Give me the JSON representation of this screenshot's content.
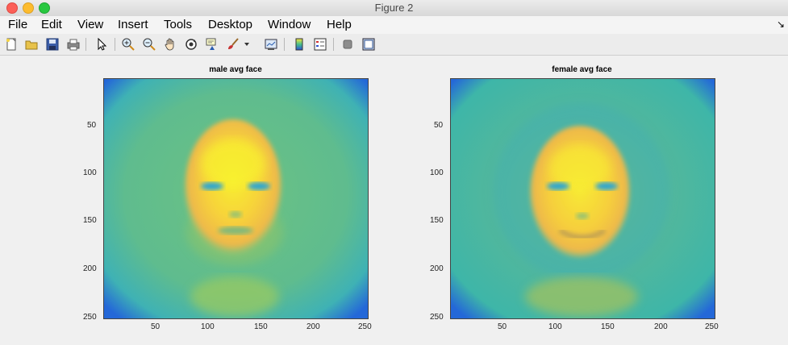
{
  "window": {
    "title": "Figure 2"
  },
  "menubar": {
    "items": [
      "File",
      "Edit",
      "View",
      "Insert",
      "Tools",
      "Desktop",
      "Window",
      "Help"
    ]
  },
  "toolbar": {
    "buttons": [
      {
        "name": "new-figure-icon"
      },
      {
        "name": "open-file-icon"
      },
      {
        "name": "save-icon"
      },
      {
        "name": "print-icon"
      },
      {
        "name": "edit-plot-arrow-icon"
      },
      {
        "name": "zoom-in-icon"
      },
      {
        "name": "zoom-out-icon"
      },
      {
        "name": "pan-hand-icon"
      },
      {
        "name": "rotate-3d-icon"
      },
      {
        "name": "data-cursor-icon"
      },
      {
        "name": "brush-icon"
      },
      {
        "name": "brush-dropdown-icon"
      },
      {
        "name": "link-plot-icon"
      },
      {
        "name": "insert-colorbar-icon"
      },
      {
        "name": "insert-legend-icon"
      },
      {
        "name": "hide-plot-tools-icon"
      },
      {
        "name": "show-plot-tools-icon"
      }
    ]
  },
  "plots": [
    {
      "title": "male avg face",
      "xticks": [
        "50",
        "100",
        "150",
        "200",
        "250"
      ],
      "yticks": [
        "50",
        "100",
        "150",
        "200",
        "250"
      ]
    },
    {
      "title": "female avg face",
      "xticks": [
        "50",
        "100",
        "150",
        "200",
        "250"
      ],
      "yticks": [
        "50",
        "100",
        "150",
        "200",
        "250"
      ]
    }
  ],
  "colors": {
    "background_teal": "#5bbc94",
    "edge_blue": "#2d7fd6",
    "face_yellow": "#f9e53c",
    "face_orange": "#f3b83a",
    "feature_blue": "#2fa6d1"
  }
}
